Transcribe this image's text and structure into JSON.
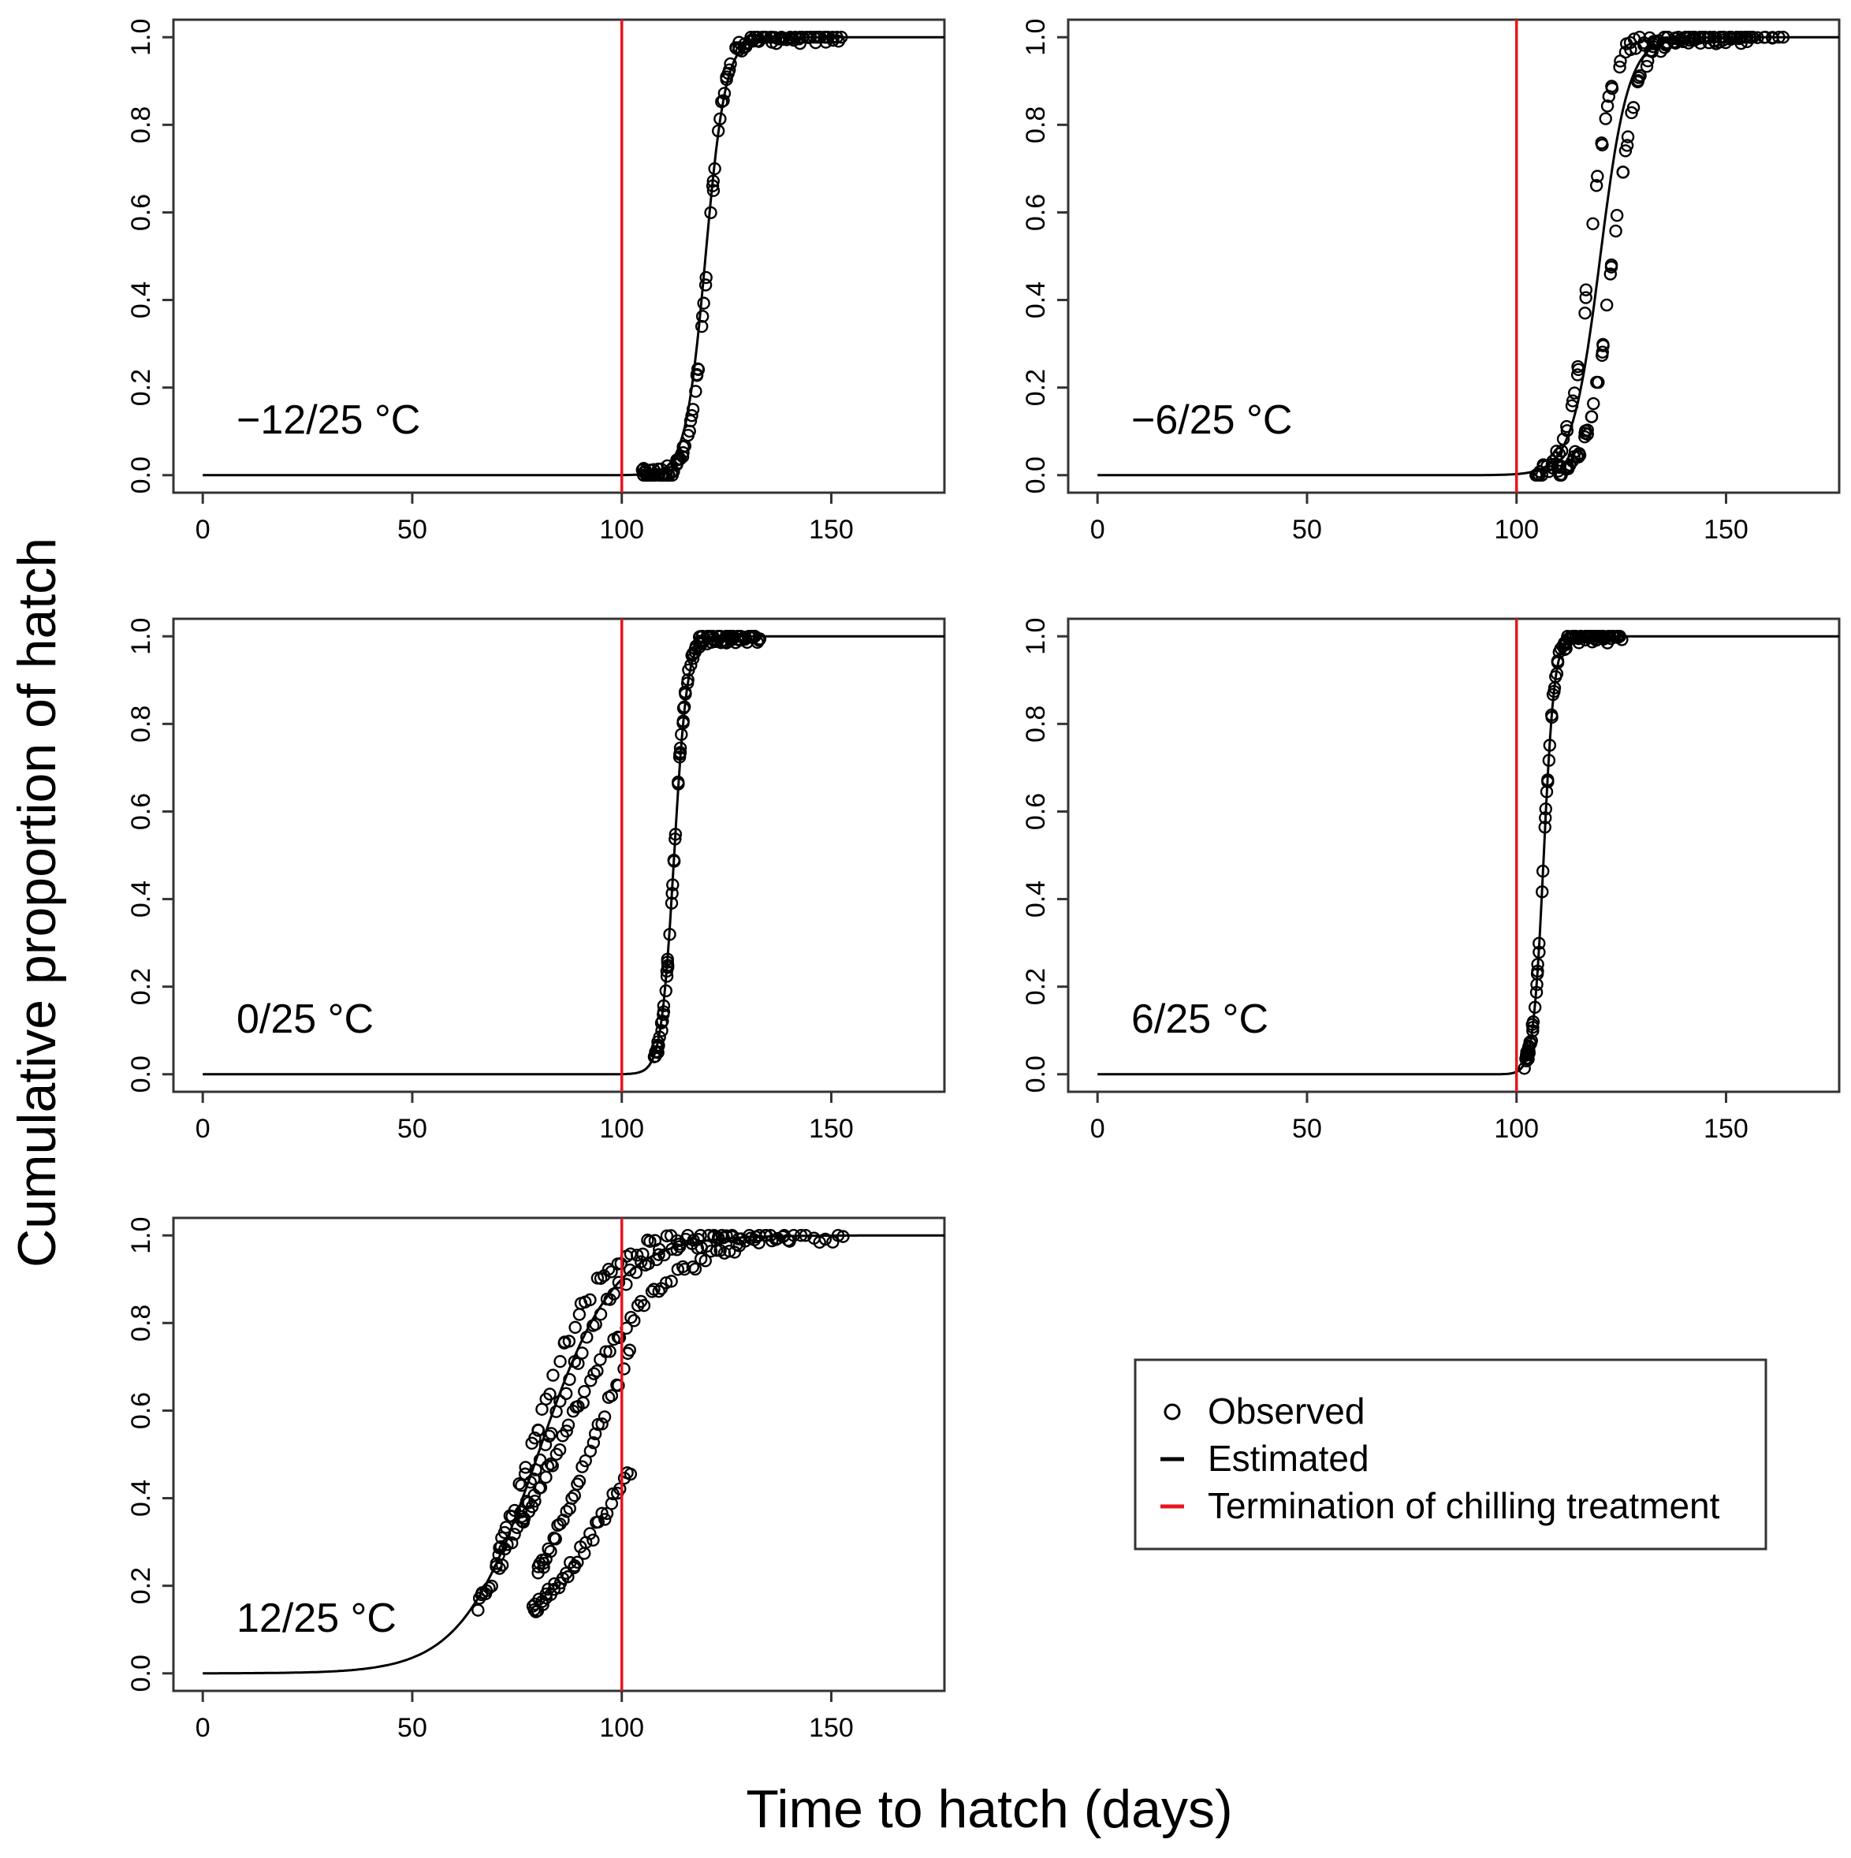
{
  "figure": {
    "xlabel": "Time to hatch (days)",
    "ylabel": "Cumulative proportion of hatch",
    "legend": {
      "observed": "Observed",
      "estimated": "Estimated",
      "termination": "Termination of chilling treatment"
    },
    "colors": {
      "termination": "#e8141e",
      "observed": "#000000",
      "estimated": "#000000"
    }
  },
  "chart_data": [
    {
      "type": "scatter",
      "panel_label": "−12/25 °C",
      "xlim": [
        -7,
        177
      ],
      "ylim": [
        -0.04,
        1.04
      ],
      "xticks": [
        0,
        50,
        100,
        150
      ],
      "yticks": [
        0.0,
        0.2,
        0.4,
        0.6,
        0.8,
        1.0
      ],
      "termination_day": 100,
      "estimated": {
        "model": "logistic",
        "x0": 120,
        "k": 0.42
      },
      "observed_groups": [
        {
          "start": 105,
          "end": 152,
          "x0": 120.5,
          "k": 0.5,
          "spread": 1.2,
          "n": 130
        }
      ]
    },
    {
      "type": "scatter",
      "panel_label": "−6/25 °C",
      "xlim": [
        -7,
        177
      ],
      "ylim": [
        -0.04,
        1.04
      ],
      "xticks": [
        0,
        50,
        100,
        150
      ],
      "yticks": [
        0.0,
        0.2,
        0.4,
        0.6,
        0.8,
        1.0
      ],
      "termination_day": 100,
      "estimated": {
        "model": "logistic",
        "x0": 120,
        "k": 0.3
      },
      "observed_groups": [
        {
          "start": 105,
          "end": 163,
          "x0": 117.5,
          "k": 0.4,
          "spread": 1.5,
          "n": 90
        },
        {
          "start": 110,
          "end": 155,
          "x0": 123,
          "k": 0.35,
          "spread": 1.5,
          "n": 90
        }
      ]
    },
    {
      "type": "scatter",
      "panel_label": "0/25 °C",
      "xlim": [
        -7,
        177
      ],
      "ylim": [
        -0.04,
        1.04
      ],
      "xticks": [
        0,
        50,
        100,
        150
      ],
      "yticks": [
        0.0,
        0.2,
        0.4,
        0.6,
        0.8,
        1.0
      ],
      "termination_day": 100,
      "estimated": {
        "model": "logistic",
        "x0": 112.5,
        "k": 0.65
      },
      "observed_groups": [
        {
          "start": 108,
          "end": 133,
          "x0": 112.5,
          "k": 0.7,
          "spread": 1.0,
          "n": 110
        }
      ]
    },
    {
      "type": "scatter",
      "panel_label": "6/25 °C",
      "xlim": [
        -7,
        177
      ],
      "ylim": [
        -0.04,
        1.04
      ],
      "xticks": [
        0,
        50,
        100,
        150
      ],
      "yticks": [
        0.0,
        0.2,
        0.4,
        0.6,
        0.8,
        1.0
      ],
      "termination_day": 100,
      "estimated": {
        "model": "logistic",
        "x0": 106.5,
        "k": 0.8
      },
      "observed_groups": [
        {
          "start": 102,
          "end": 125,
          "x0": 106.5,
          "k": 0.8,
          "spread": 0.8,
          "n": 100
        }
      ]
    },
    {
      "type": "scatter",
      "panel_label": "12/25 °C",
      "xlim": [
        -7,
        177
      ],
      "ylim": [
        -0.04,
        1.04
      ],
      "xticks": [
        0,
        50,
        100,
        150
      ],
      "yticks": [
        0.0,
        0.2,
        0.4,
        0.6,
        0.8,
        1.0
      ],
      "termination_day": 100,
      "estimated": {
        "model": "logistic",
        "x0": 80,
        "k": 0.11
      },
      "observed_groups": [
        {
          "start": 66,
          "end": 153,
          "x0": 81,
          "k": 0.11,
          "spread": 0.8,
          "n": 80
        },
        {
          "start": 70,
          "end": 140,
          "x0": 78,
          "k": 0.13,
          "spread": 1.0,
          "n": 70
        },
        {
          "start": 76,
          "end": 128,
          "x0": 84,
          "k": 0.08,
          "spread": 1.0,
          "n": 60
        },
        {
          "start": 80,
          "end": 102,
          "x0": 92,
          "k": 0.1,
          "spread": 0.6,
          "n": 35
        },
        {
          "start": 79,
          "end": 102,
          "x0": 104,
          "k": 0.07,
          "spread": 0.6,
          "n": 40
        }
      ]
    }
  ]
}
